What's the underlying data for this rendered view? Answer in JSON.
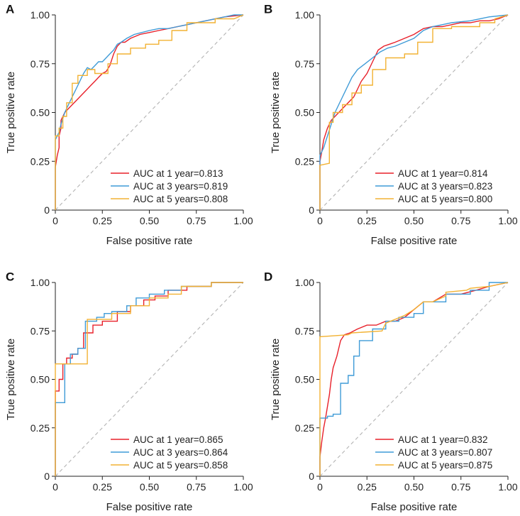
{
  "chart_data": [
    {
      "panel": "A",
      "type": "line",
      "xlabel": "False positive rate",
      "ylabel": "True positive rate",
      "xlim": [
        0,
        1
      ],
      "ylim": [
        0,
        1
      ],
      "ticks": [
        "0",
        "0.25",
        "0.50",
        "0.75",
        "1.00"
      ],
      "legend_position": "bottom-right",
      "series": [
        {
          "name": "AUC at 1 year=0.813",
          "color": "#e8202a",
          "x": [
            0,
            0,
            0.01,
            0.02,
            0.02,
            0.03,
            0.03,
            0.05,
            0.07,
            0.09,
            0.11,
            0.13,
            0.15,
            0.17,
            0.19,
            0.21,
            0.23,
            0.25,
            0.27,
            0.29,
            0.31,
            0.33,
            0.35,
            0.37,
            0.4,
            0.45,
            0.5,
            0.55,
            0.6,
            0.7,
            0.8,
            0.9,
            1.0
          ],
          "y": [
            0,
            0.22,
            0.28,
            0.32,
            0.38,
            0.42,
            0.46,
            0.5,
            0.52,
            0.54,
            0.56,
            0.58,
            0.6,
            0.62,
            0.64,
            0.66,
            0.68,
            0.7,
            0.71,
            0.74,
            0.8,
            0.84,
            0.86,
            0.86,
            0.88,
            0.9,
            0.91,
            0.92,
            0.93,
            0.95,
            0.97,
            0.99,
            1.0
          ]
        },
        {
          "name": "AUC at 3 years=0.819",
          "color": "#3f9bd7",
          "x": [
            0,
            0,
            0.01,
            0.02,
            0.03,
            0.05,
            0.07,
            0.09,
            0.11,
            0.13,
            0.15,
            0.17,
            0.19,
            0.21,
            0.23,
            0.25,
            0.27,
            0.29,
            0.31,
            0.33,
            0.35,
            0.38,
            0.42,
            0.46,
            0.5,
            0.55,
            0.6,
            0.65,
            0.7,
            0.8,
            0.9,
            0.95,
            1.0
          ],
          "y": [
            0,
            0.36,
            0.38,
            0.4,
            0.44,
            0.5,
            0.54,
            0.58,
            0.62,
            0.66,
            0.7,
            0.73,
            0.72,
            0.74,
            0.76,
            0.76,
            0.78,
            0.8,
            0.82,
            0.85,
            0.86,
            0.88,
            0.9,
            0.91,
            0.92,
            0.93,
            0.93,
            0.94,
            0.95,
            0.97,
            0.99,
            1.0,
            1.0
          ]
        },
        {
          "name": "AUC at 5 years=0.808",
          "color": "#f2b233",
          "x": [
            0,
            0,
            0.02,
            0.02,
            0.04,
            0.04,
            0.06,
            0.06,
            0.09,
            0.09,
            0.12,
            0.12,
            0.17,
            0.17,
            0.21,
            0.21,
            0.28,
            0.28,
            0.33,
            0.33,
            0.4,
            0.4,
            0.48,
            0.48,
            0.55,
            0.55,
            0.62,
            0.62,
            0.7,
            0.7,
            0.85,
            0.85,
            0.95,
            1.0
          ],
          "y": [
            0,
            0.38,
            0.38,
            0.42,
            0.42,
            0.48,
            0.48,
            0.55,
            0.55,
            0.65,
            0.65,
            0.69,
            0.69,
            0.72,
            0.72,
            0.7,
            0.7,
            0.75,
            0.75,
            0.8,
            0.8,
            0.83,
            0.83,
            0.85,
            0.85,
            0.87,
            0.87,
            0.92,
            0.92,
            0.96,
            0.96,
            0.98,
            0.98,
            1.0
          ]
        }
      ],
      "reference_line": {
        "x": [
          0,
          1
        ],
        "y": [
          0,
          1
        ],
        "style": "dashed",
        "color": "#b3b3b3"
      }
    },
    {
      "panel": "B",
      "type": "line",
      "xlabel": "False positive rate",
      "ylabel": "True positive rate",
      "xlim": [
        0,
        1
      ],
      "ylim": [
        0,
        1
      ],
      "ticks": [
        "0",
        "0.25",
        "0.50",
        "0.75",
        "1.00"
      ],
      "legend_position": "bottom-right",
      "series": [
        {
          "name": "AUC at 1 year=0.814",
          "color": "#e8202a",
          "x": [
            0,
            0,
            0.01,
            0.02,
            0.04,
            0.06,
            0.08,
            0.1,
            0.12,
            0.14,
            0.16,
            0.18,
            0.2,
            0.22,
            0.25,
            0.28,
            0.31,
            0.34,
            0.37,
            0.4,
            0.45,
            0.5,
            0.55,
            0.6,
            0.65,
            0.7,
            0.75,
            0.8,
            0.85,
            0.9,
            0.95,
            1.0
          ],
          "y": [
            0,
            0.25,
            0.3,
            0.36,
            0.42,
            0.46,
            0.48,
            0.5,
            0.52,
            0.54,
            0.56,
            0.58,
            0.62,
            0.66,
            0.7,
            0.76,
            0.82,
            0.84,
            0.85,
            0.86,
            0.88,
            0.9,
            0.93,
            0.94,
            0.94,
            0.95,
            0.96,
            0.96,
            0.97,
            0.97,
            0.98,
            1.0
          ]
        },
        {
          "name": "AUC at 3 years=0.823",
          "color": "#3f9bd7",
          "x": [
            0,
            0,
            0.02,
            0.04,
            0.06,
            0.08,
            0.1,
            0.12,
            0.14,
            0.17,
            0.2,
            0.24,
            0.28,
            0.32,
            0.36,
            0.4,
            0.45,
            0.5,
            0.55,
            0.6,
            0.65,
            0.7,
            0.8,
            0.9,
            1.0
          ],
          "y": [
            0,
            0.28,
            0.32,
            0.38,
            0.44,
            0.5,
            0.54,
            0.58,
            0.62,
            0.68,
            0.72,
            0.75,
            0.78,
            0.81,
            0.83,
            0.84,
            0.86,
            0.88,
            0.92,
            0.94,
            0.95,
            0.96,
            0.97,
            0.99,
            1.0
          ]
        },
        {
          "name": "AUC at 5 years=0.800",
          "color": "#f2b233",
          "x": [
            0,
            0,
            0.05,
            0.05,
            0.07,
            0.07,
            0.12,
            0.12,
            0.17,
            0.17,
            0.22,
            0.22,
            0.28,
            0.28,
            0.35,
            0.35,
            0.45,
            0.45,
            0.52,
            0.52,
            0.6,
            0.6,
            0.7,
            0.7,
            0.85,
            0.85,
            0.93,
            0.93,
            1.0
          ],
          "y": [
            0,
            0.23,
            0.24,
            0.45,
            0.45,
            0.5,
            0.5,
            0.54,
            0.54,
            0.6,
            0.6,
            0.64,
            0.64,
            0.72,
            0.72,
            0.78,
            0.78,
            0.8,
            0.8,
            0.86,
            0.86,
            0.93,
            0.93,
            0.94,
            0.94,
            0.96,
            0.96,
            0.98,
            1.0
          ]
        }
      ],
      "reference_line": {
        "x": [
          0,
          1
        ],
        "y": [
          0,
          1
        ],
        "style": "dashed",
        "color": "#b3b3b3"
      }
    },
    {
      "panel": "C",
      "type": "line",
      "xlabel": "False positive rate",
      "ylabel": "True positive rate",
      "xlim": [
        0,
        1
      ],
      "ylim": [
        0,
        1
      ],
      "ticks": [
        "0",
        "0.25",
        "0.50",
        "0.75",
        "1.00"
      ],
      "legend_position": "bottom-right",
      "series": [
        {
          "name": "AUC at 1 year=0.865",
          "color": "#e8202a",
          "x": [
            0,
            0,
            0.02,
            0.02,
            0.04,
            0.04,
            0.06,
            0.06,
            0.09,
            0.09,
            0.12,
            0.12,
            0.15,
            0.15,
            0.2,
            0.2,
            0.25,
            0.25,
            0.33,
            0.33,
            0.4,
            0.4,
            0.47,
            0.47,
            0.53,
            0.53,
            0.6,
            0.6,
            0.7,
            0.7,
            0.83,
            0.83,
            1.0
          ],
          "y": [
            0,
            0.44,
            0.44,
            0.5,
            0.5,
            0.58,
            0.58,
            0.61,
            0.61,
            0.63,
            0.63,
            0.66,
            0.66,
            0.74,
            0.74,
            0.78,
            0.78,
            0.8,
            0.8,
            0.85,
            0.85,
            0.88,
            0.88,
            0.91,
            0.91,
            0.93,
            0.93,
            0.96,
            0.96,
            0.98,
            0.98,
            1.0,
            1.0
          ]
        },
        {
          "name": "AUC at 3 years=0.864",
          "color": "#3f9bd7",
          "x": [
            0,
            0,
            0.05,
            0.05,
            0.08,
            0.08,
            0.12,
            0.12,
            0.16,
            0.16,
            0.22,
            0.22,
            0.26,
            0.26,
            0.3,
            0.3,
            0.38,
            0.38,
            0.43,
            0.43,
            0.5,
            0.5,
            0.58,
            0.58,
            0.67,
            0.67,
            0.83,
            0.83,
            1.0
          ],
          "y": [
            0,
            0.38,
            0.38,
            0.58,
            0.58,
            0.63,
            0.63,
            0.66,
            0.66,
            0.8,
            0.8,
            0.82,
            0.82,
            0.84,
            0.84,
            0.85,
            0.85,
            0.88,
            0.88,
            0.92,
            0.92,
            0.94,
            0.94,
            0.96,
            0.96,
            0.98,
            0.98,
            1.0,
            1.0
          ]
        },
        {
          "name": "AUC at 5 years=0.858",
          "color": "#f2b233",
          "x": [
            0,
            0,
            0.17,
            0.17,
            0.3,
            0.3,
            0.4,
            0.4,
            0.5,
            0.5,
            0.6,
            0.6,
            0.67,
            0.67,
            0.83,
            0.83,
            1.0
          ],
          "y": [
            0,
            0.58,
            0.58,
            0.81,
            0.81,
            0.84,
            0.84,
            0.88,
            0.88,
            0.92,
            0.92,
            0.94,
            0.94,
            0.98,
            0.98,
            1.0,
            1.0
          ]
        }
      ],
      "reference_line": {
        "x": [
          0,
          1
        ],
        "y": [
          0,
          1
        ],
        "style": "dashed",
        "color": "#b3b3b3"
      }
    },
    {
      "panel": "D",
      "type": "line",
      "xlabel": "False positive rate",
      "ylabel": "True positive rate",
      "xlim": [
        0,
        1
      ],
      "ylim": [
        0,
        1
      ],
      "ticks": [
        "0",
        "0.25",
        "0.50",
        "0.75",
        "1.00"
      ],
      "legend_position": "bottom-right",
      "series": [
        {
          "name": "AUC at 1 year=0.832",
          "color": "#e8202a",
          "x": [
            0,
            0,
            0.01,
            0.02,
            0.03,
            0.05,
            0.06,
            0.07,
            0.09,
            0.11,
            0.13,
            0.16,
            0.2,
            0.25,
            0.3,
            0.35,
            0.4,
            0.45,
            0.5,
            0.55,
            0.6,
            0.67,
            0.75,
            0.83,
            0.9,
            1.0
          ],
          "y": [
            0,
            0.1,
            0.18,
            0.25,
            0.3,
            0.42,
            0.5,
            0.56,
            0.62,
            0.7,
            0.73,
            0.74,
            0.76,
            0.78,
            0.78,
            0.8,
            0.8,
            0.82,
            0.86,
            0.9,
            0.9,
            0.94,
            0.94,
            0.96,
            0.98,
            1.0
          ]
        },
        {
          "name": "AUC at 3 years=0.807",
          "color": "#3f9bd7",
          "x": [
            0,
            0,
            0.04,
            0.04,
            0.07,
            0.07,
            0.11,
            0.11,
            0.15,
            0.15,
            0.18,
            0.18,
            0.21,
            0.21,
            0.28,
            0.28,
            0.35,
            0.35,
            0.42,
            0.42,
            0.5,
            0.5,
            0.55,
            0.55,
            0.67,
            0.67,
            0.8,
            0.8,
            0.9,
            0.9,
            1.0
          ],
          "y": [
            0,
            0.3,
            0.3,
            0.31,
            0.31,
            0.32,
            0.32,
            0.48,
            0.48,
            0.52,
            0.52,
            0.62,
            0.62,
            0.7,
            0.7,
            0.76,
            0.76,
            0.8,
            0.8,
            0.82,
            0.82,
            0.84,
            0.84,
            0.9,
            0.9,
            0.94,
            0.94,
            0.96,
            0.96,
            1.0,
            1.0
          ]
        },
        {
          "name": "AUC at 5 years=0.875",
          "color": "#f2b233",
          "x": [
            0,
            0,
            0.15,
            0.17,
            0.33,
            0.35,
            0.45,
            0.5,
            0.55,
            0.6,
            0.67,
            0.67,
            0.78,
            0.8,
            0.9,
            1.0
          ],
          "y": [
            0,
            0.72,
            0.73,
            0.74,
            0.75,
            0.79,
            0.83,
            0.86,
            0.9,
            0.9,
            0.93,
            0.95,
            0.96,
            0.97,
            0.98,
            1.0
          ]
        }
      ],
      "reference_line": {
        "x": [
          0,
          1
        ],
        "y": [
          0,
          1
        ],
        "style": "dashed",
        "color": "#b3b3b3"
      }
    }
  ]
}
